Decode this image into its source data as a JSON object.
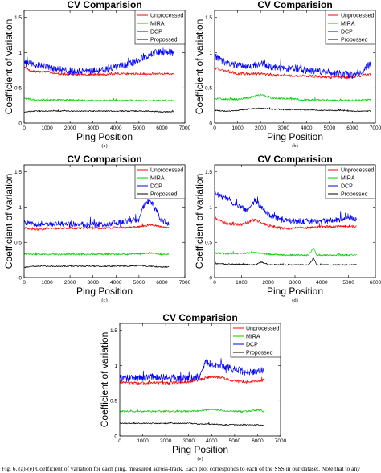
{
  "caption": "Fig. 6.  (a)-(e) Coefficient of variation for each ping, measured across-track. Each plot corresponds to each of the SSS in our dataset. Note that to any",
  "chart_data": [
    {
      "panel": "(a)",
      "type": "line",
      "title": "CV Comparision",
      "xlabel": "Ping Position",
      "ylabel": "Coefficient of variation",
      "xlim": [
        0,
        7000
      ],
      "ylim": [
        0,
        1.6
      ],
      "xticks": [
        0,
        1000,
        2000,
        3000,
        4000,
        5000,
        6000,
        7000
      ],
      "yticks": [
        0,
        0.5,
        1,
        1.5
      ],
      "grid": false,
      "legend_position": "top-right",
      "series": [
        {
          "name": "Unprocessed",
          "color": "#ff0000",
          "x": [
            0,
            250,
            500,
            1000,
            1500,
            2000,
            2500,
            3000,
            3500,
            4000,
            4500,
            5000,
            5500,
            6000,
            6500
          ],
          "y": [
            0.8,
            0.74,
            0.73,
            0.73,
            0.7,
            0.69,
            0.69,
            0.69,
            0.69,
            0.7,
            0.7,
            0.7,
            0.7,
            0.7,
            0.7
          ],
          "noise": 0.015
        },
        {
          "name": "MIRA",
          "color": "#00cc00",
          "x": [
            0,
            500,
            1000,
            1500,
            2000,
            2500,
            3000,
            3500,
            4000,
            4500,
            5000,
            5500,
            6000,
            6500
          ],
          "y": [
            0.35,
            0.33,
            0.33,
            0.33,
            0.33,
            0.32,
            0.32,
            0.32,
            0.32,
            0.32,
            0.32,
            0.32,
            0.32,
            0.32
          ],
          "noise": 0.012
        },
        {
          "name": "DCP",
          "color": "#0000ff",
          "x": [
            0,
            250,
            500,
            1000,
            1500,
            2000,
            2500,
            3000,
            3500,
            4000,
            4500,
            5000,
            5500,
            6000,
            6500
          ],
          "y": [
            0.9,
            0.85,
            0.82,
            0.8,
            0.76,
            0.73,
            0.73,
            0.75,
            0.75,
            0.8,
            0.83,
            0.9,
            0.98,
            1.02,
            1.0
          ],
          "noise": 0.05
        },
        {
          "name": "Propossed",
          "color": "#000000",
          "x": [
            0,
            500,
            1000,
            1500,
            2000,
            2500,
            3000,
            3500,
            4000,
            4500,
            5000,
            5500,
            6000,
            6500
          ],
          "y": [
            0.16,
            0.17,
            0.17,
            0.17,
            0.17,
            0.17,
            0.17,
            0.17,
            0.17,
            0.17,
            0.17,
            0.17,
            0.16,
            0.16
          ],
          "noise": 0.008
        }
      ]
    },
    {
      "panel": "(b)",
      "type": "line",
      "title": "CV Comparision",
      "xlabel": "Ping Position",
      "ylabel": "Coefficient of variation",
      "xlim": [
        0,
        7000
      ],
      "ylim": [
        0,
        1.6
      ],
      "xticks": [
        0,
        1000,
        2000,
        3000,
        4000,
        5000,
        6000,
        7000
      ],
      "yticks": [
        0,
        0.5,
        1,
        1.5
      ],
      "grid": false,
      "legend_position": "top-right",
      "series": [
        {
          "name": "Unprocessed",
          "color": "#ff0000",
          "x": [
            0,
            500,
            1000,
            1500,
            2000,
            2500,
            3000,
            3500,
            4000,
            4500,
            5000,
            5500,
            6000,
            6500,
            6800
          ],
          "y": [
            0.78,
            0.74,
            0.7,
            0.7,
            0.7,
            0.68,
            0.68,
            0.67,
            0.67,
            0.66,
            0.65,
            0.65,
            0.65,
            0.68,
            0.7
          ],
          "noise": 0.02
        },
        {
          "name": "MIRA",
          "color": "#00cc00",
          "x": [
            0,
            500,
            1000,
            1500,
            2000,
            2500,
            3000,
            3500,
            4000,
            4500,
            5000,
            5500,
            6000,
            6500,
            6800
          ],
          "y": [
            0.35,
            0.34,
            0.34,
            0.36,
            0.4,
            0.36,
            0.35,
            0.34,
            0.33,
            0.33,
            0.32,
            0.32,
            0.32,
            0.33,
            0.33
          ],
          "noise": 0.015
        },
        {
          "name": "DCP",
          "color": "#0000ff",
          "x": [
            0,
            250,
            500,
            1000,
            1500,
            2000,
            2500,
            3000,
            3500,
            4000,
            4500,
            5000,
            5500,
            6000,
            6500,
            6800
          ],
          "y": [
            0.95,
            0.9,
            0.85,
            0.82,
            0.8,
            0.85,
            0.8,
            0.78,
            0.78,
            0.75,
            0.74,
            0.72,
            0.7,
            0.68,
            0.75,
            0.85
          ],
          "noise": 0.05
        },
        {
          "name": "Propossed",
          "color": "#000000",
          "x": [
            0,
            500,
            1000,
            1500,
            2000,
            2500,
            3000,
            3500,
            4000,
            4500,
            5000,
            5500,
            6000,
            6500,
            6800
          ],
          "y": [
            0.18,
            0.17,
            0.18,
            0.2,
            0.21,
            0.2,
            0.19,
            0.19,
            0.19,
            0.18,
            0.18,
            0.18,
            0.17,
            0.17,
            0.17
          ],
          "noise": 0.008
        }
      ]
    },
    {
      "panel": "(c)",
      "type": "line",
      "title": "CV Comparision",
      "xlabel": "Ping Position",
      "ylabel": "Coefficient of variation",
      "xlim": [
        0,
        7000
      ],
      "ylim": [
        0,
        1.6
      ],
      "xticks": [
        0,
        1000,
        2000,
        3000,
        4000,
        5000,
        6000,
        7000
      ],
      "yticks": [
        0,
        0.5,
        1,
        1.5
      ],
      "grid": false,
      "legend_position": "top-right",
      "series": [
        {
          "name": "Unprocessed",
          "color": "#ff0000",
          "x": [
            0,
            500,
            1000,
            1500,
            2000,
            2500,
            3000,
            3500,
            4000,
            4500,
            5000,
            5500,
            6000,
            6300
          ],
          "y": [
            0.7,
            0.68,
            0.69,
            0.7,
            0.7,
            0.7,
            0.7,
            0.7,
            0.71,
            0.71,
            0.72,
            0.75,
            0.72,
            0.7
          ],
          "noise": 0.015
        },
        {
          "name": "MIRA",
          "color": "#00cc00",
          "x": [
            0,
            500,
            1000,
            1500,
            2000,
            2500,
            3000,
            3500,
            4000,
            4500,
            5000,
            5500,
            6000,
            6300
          ],
          "y": [
            0.34,
            0.33,
            0.33,
            0.33,
            0.33,
            0.33,
            0.33,
            0.33,
            0.33,
            0.33,
            0.34,
            0.35,
            0.33,
            0.33
          ],
          "noise": 0.012
        },
        {
          "name": "DCP",
          "color": "#0000ff",
          "x": [
            0,
            500,
            1000,
            1500,
            2000,
            2500,
            3000,
            3500,
            4000,
            4500,
            5000,
            5250,
            5500,
            5750,
            6000,
            6300
          ],
          "y": [
            0.78,
            0.75,
            0.76,
            0.76,
            0.76,
            0.75,
            0.75,
            0.76,
            0.78,
            0.8,
            0.82,
            1.05,
            1.1,
            0.95,
            0.8,
            0.75
          ],
          "noise": 0.04
        },
        {
          "name": "Propossed",
          "color": "#000000",
          "x": [
            0,
            500,
            1000,
            1500,
            2000,
            2500,
            3000,
            3500,
            4000,
            4500,
            5000,
            5500,
            6000,
            6300
          ],
          "y": [
            0.15,
            0.16,
            0.16,
            0.16,
            0.16,
            0.16,
            0.16,
            0.16,
            0.16,
            0.16,
            0.17,
            0.16,
            0.15,
            0.15
          ],
          "noise": 0.008
        }
      ]
    },
    {
      "panel": "(d)",
      "type": "line",
      "title": "CV Comparision",
      "xlabel": "Ping Position",
      "ylabel": "Coefficient of variation",
      "xlim": [
        0,
        6000
      ],
      "ylim": [
        0,
        1.6
      ],
      "xticks": [
        0,
        1000,
        2000,
        3000,
        4000,
        5000,
        6000
      ],
      "yticks": [
        0,
        0.5,
        1,
        1.5
      ],
      "grid": false,
      "legend_position": "top-right",
      "series": [
        {
          "name": "Unprocessed",
          "color": "#ff0000",
          "x": [
            0,
            250,
            500,
            1000,
            1500,
            2000,
            2500,
            3000,
            3500,
            4000,
            4500,
            5000,
            5300
          ],
          "y": [
            0.85,
            0.8,
            0.76,
            0.75,
            0.82,
            0.74,
            0.7,
            0.7,
            0.71,
            0.72,
            0.72,
            0.73,
            0.72
          ],
          "noise": 0.02
        },
        {
          "name": "MIRA",
          "color": "#00cc00",
          "x": [
            0,
            500,
            1000,
            1500,
            2000,
            2500,
            3000,
            3500,
            3700,
            3800,
            4000,
            4500,
            5000,
            5300
          ],
          "y": [
            0.35,
            0.34,
            0.34,
            0.36,
            0.33,
            0.32,
            0.32,
            0.32,
            0.42,
            0.32,
            0.32,
            0.32,
            0.32,
            0.32
          ],
          "noise": 0.012
        },
        {
          "name": "DCP",
          "color": "#0000ff",
          "x": [
            0,
            250,
            500,
            1000,
            1250,
            1500,
            1750,
            2000,
            2500,
            3000,
            3500,
            4000,
            4500,
            5000,
            5300
          ],
          "y": [
            1.2,
            1.15,
            1.1,
            1.0,
            0.95,
            1.1,
            1.0,
            0.9,
            0.82,
            0.8,
            0.8,
            0.8,
            0.82,
            0.84,
            0.83
          ],
          "noise": 0.04
        },
        {
          "name": "Propossed",
          "color": "#000000",
          "x": [
            0,
            500,
            1000,
            1500,
            1750,
            2000,
            2500,
            3000,
            3500,
            3700,
            3800,
            4000,
            4500,
            5000,
            5300
          ],
          "y": [
            0.2,
            0.19,
            0.19,
            0.18,
            0.22,
            0.18,
            0.18,
            0.18,
            0.18,
            0.28,
            0.18,
            0.18,
            0.18,
            0.18,
            0.18
          ],
          "noise": 0.008
        }
      ]
    },
    {
      "panel": "(e)",
      "type": "line",
      "title": "CV Comparision",
      "xlabel": "Ping Position",
      "ylabel": "Coefficient of variation",
      "xlim": [
        0,
        7000
      ],
      "ylim": [
        0,
        1.6
      ],
      "xticks": [
        0,
        1000,
        2000,
        3000,
        4000,
        5000,
        6000,
        7000
      ],
      "yticks": [
        0,
        0.5,
        1,
        1.5
      ],
      "grid": false,
      "legend_position": "top-right",
      "series": [
        {
          "name": "Unprocessed",
          "color": "#ff0000",
          "x": [
            0,
            500,
            1000,
            1500,
            2000,
            2500,
            3000,
            3500,
            4000,
            4500,
            5000,
            5500,
            6000,
            6300
          ],
          "y": [
            0.76,
            0.75,
            0.75,
            0.76,
            0.75,
            0.76,
            0.76,
            0.8,
            0.85,
            0.82,
            0.78,
            0.76,
            0.78,
            0.8
          ],
          "noise": 0.02
        },
        {
          "name": "MIRA",
          "color": "#00cc00",
          "x": [
            0,
            500,
            1000,
            1500,
            2000,
            2500,
            3000,
            3500,
            4000,
            4500,
            5000,
            5500,
            6000,
            6300
          ],
          "y": [
            0.35,
            0.35,
            0.35,
            0.35,
            0.35,
            0.35,
            0.35,
            0.36,
            0.38,
            0.36,
            0.35,
            0.35,
            0.37,
            0.35
          ],
          "noise": 0.012
        },
        {
          "name": "DCP",
          "color": "#0000ff",
          "x": [
            0,
            500,
            1000,
            1500,
            2000,
            2500,
            3000,
            3500,
            3750,
            4000,
            4500,
            5000,
            5500,
            6000,
            6300
          ],
          "y": [
            0.82,
            0.82,
            0.83,
            0.84,
            0.83,
            0.82,
            0.82,
            0.84,
            1.05,
            1.02,
            0.98,
            0.95,
            0.9,
            0.92,
            0.95
          ],
          "noise": 0.05
        },
        {
          "name": "Propossed",
          "color": "#000000",
          "x": [
            0,
            500,
            1000,
            1500,
            2000,
            2500,
            3000,
            3500,
            4000,
            4500,
            5000,
            5500,
            6000,
            6300
          ],
          "y": [
            0.18,
            0.18,
            0.18,
            0.18,
            0.18,
            0.18,
            0.18,
            0.17,
            0.17,
            0.16,
            0.16,
            0.16,
            0.16,
            0.15
          ],
          "noise": 0.008
        }
      ]
    }
  ]
}
